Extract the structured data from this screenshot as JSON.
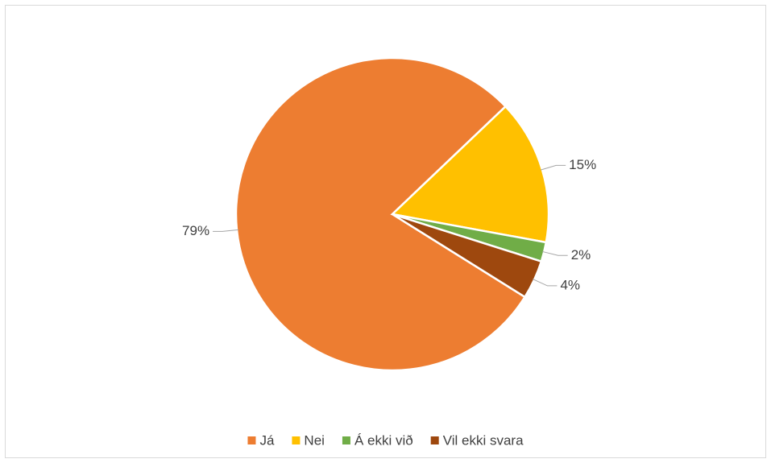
{
  "chart_data": {
    "type": "pie",
    "categories": [
      "Já",
      "Nei",
      "Á ekki við",
      "Vil ekki svara"
    ],
    "values": [
      79,
      15,
      2,
      4
    ],
    "value_labels": [
      "79%",
      "15%",
      "2%",
      "4%"
    ],
    "colors": [
      "#ed7d31",
      "#ffc000",
      "#70ad47",
      "#9e480e"
    ],
    "start_angle": 122,
    "legend": "bottom"
  }
}
